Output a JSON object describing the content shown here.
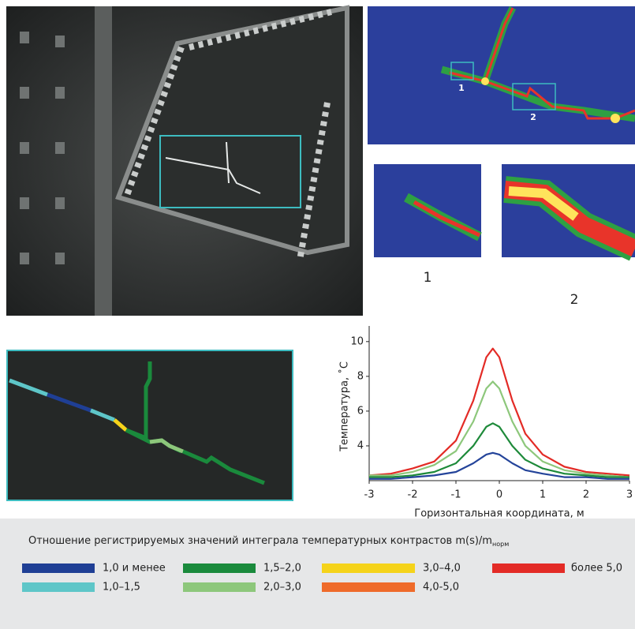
{
  "chart_data": {
    "type": "line",
    "y_label": "Температура, ˚С",
    "x_label": "Горизонтальная координата, м",
    "x": [
      -3,
      -2.5,
      -2,
      -1.5,
      -1,
      -0.6,
      -0.3,
      -0.15,
      0,
      0.3,
      0.6,
      1,
      1.5,
      2,
      2.5,
      3
    ],
    "series": [
      {
        "color": "#e32b26",
        "values": [
          2.3,
          2.4,
          2.7,
          3.1,
          4.3,
          6.6,
          9.1,
          9.6,
          9.1,
          6.6,
          4.7,
          3.5,
          2.8,
          2.5,
          2.4,
          2.3
        ]
      },
      {
        "color": "#8dc77b",
        "values": [
          2.3,
          2.3,
          2.5,
          2.9,
          3.7,
          5.4,
          7.3,
          7.7,
          7.3,
          5.4,
          4.0,
          3.1,
          2.6,
          2.4,
          2.3,
          2.2
        ]
      },
      {
        "color": "#1e8a3a",
        "values": [
          2.2,
          2.2,
          2.3,
          2.5,
          3.0,
          4.0,
          5.1,
          5.3,
          5.1,
          4.0,
          3.2,
          2.7,
          2.4,
          2.3,
          2.2,
          2.2
        ]
      },
      {
        "color": "#24449a",
        "values": [
          2.1,
          2.1,
          2.2,
          2.3,
          2.5,
          3.0,
          3.5,
          3.6,
          3.5,
          3.0,
          2.6,
          2.4,
          2.2,
          2.2,
          2.1,
          2.1
        ]
      }
    ],
    "xlim": [
      -3,
      3
    ],
    "ylim": [
      2,
      10.9
    ],
    "xticks": [
      -3,
      -2,
      -1,
      0,
      1,
      2,
      3
    ],
    "yticks": [
      4,
      6,
      8,
      10
    ],
    "grid": false
  },
  "figure_labels": {
    "inset_1": "1",
    "inset_2": "2",
    "marker_1": "1",
    "marker_2": "2"
  },
  "legend": {
    "title": "Отношение регистрируемых значений интеграла температурных контрастов m(s)/m",
    "title_sub": "норм",
    "items": [
      {
        "label": "1,0 и менее",
        "color": "#1f3f95"
      },
      {
        "label": "1,5–2,0",
        "color": "#1a8a3c"
      },
      {
        "label": "3,0–4,0",
        "color": "#f5d31a"
      },
      {
        "label": "более 5,0",
        "color": "#e32b26"
      },
      {
        "label": "1,0–1,5",
        "color": "#5ec6c8"
      },
      {
        "label": "2,0–3,0",
        "color": "#8dc77b"
      },
      {
        "label": "4,0-5,0",
        "color": "#ef6b2a"
      }
    ]
  }
}
